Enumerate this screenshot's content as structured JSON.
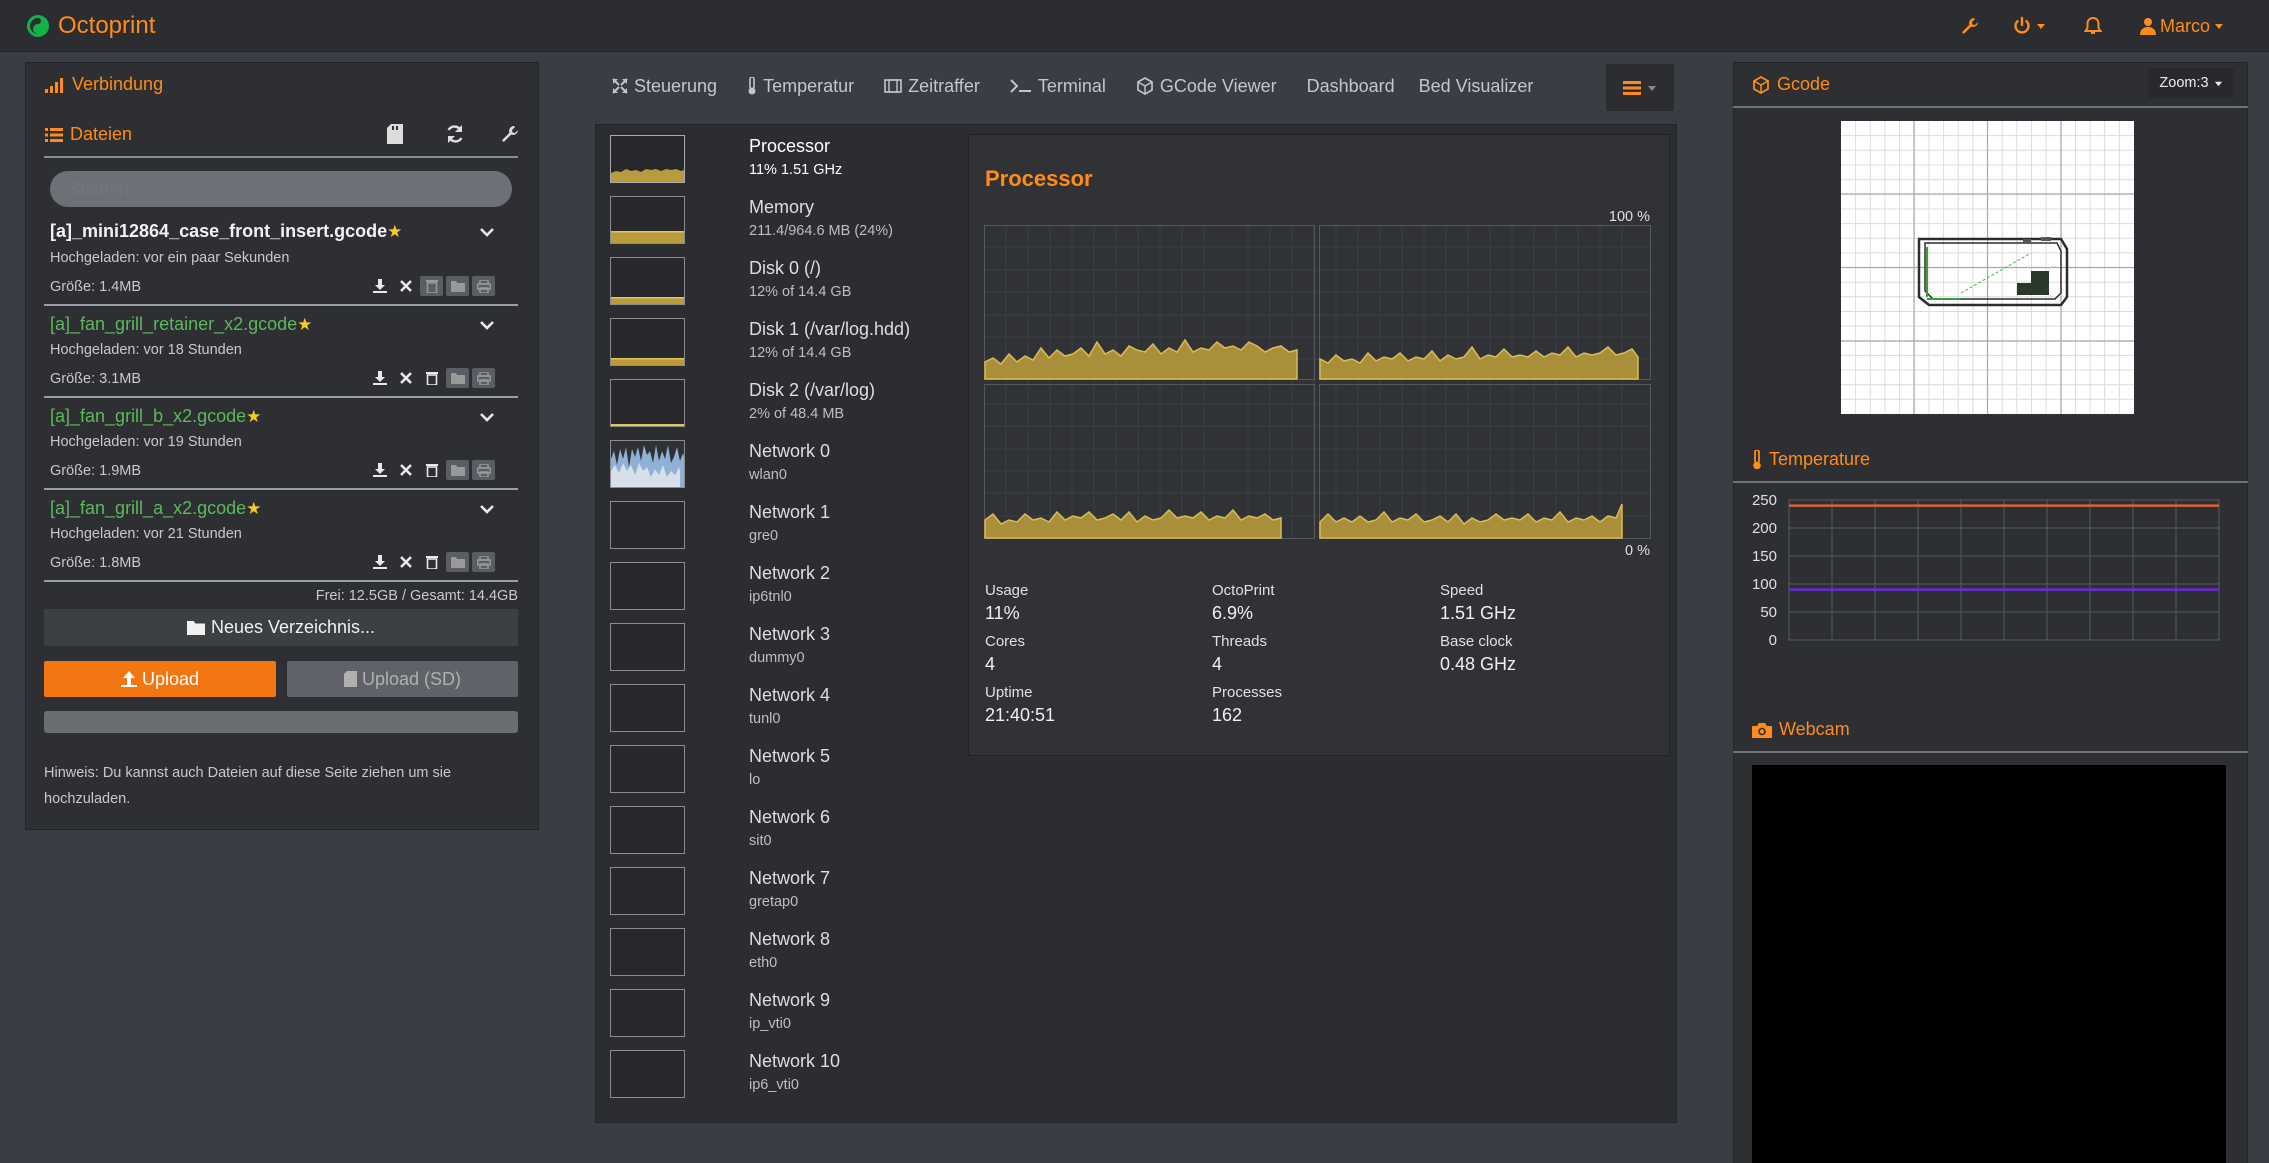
{
  "navbar": {
    "brand": "Octoprint",
    "user": "Marco"
  },
  "left": {
    "connection_title": "Verbindung",
    "files_title": "Dateien",
    "search_placeholder": "Suchen...",
    "files": [
      {
        "name": "[a]_mini12864_case_front_insert.gcode",
        "uploaded": "Hochgeladen: vor ein paar Sekunden",
        "size": "Größe: 1.4MB"
      },
      {
        "name": "[a]_fan_grill_retainer_x2.gcode",
        "uploaded": "Hochgeladen: vor 18 Stunden",
        "size": "Größe: 3.1MB"
      },
      {
        "name": "[a]_fan_grill_b_x2.gcode",
        "uploaded": "Hochgeladen: vor 19 Stunden",
        "size": "Größe: 1.9MB"
      },
      {
        "name": "[a]_fan_grill_a_x2.gcode",
        "uploaded": "Hochgeladen: vor 21 Stunden",
        "size": "Größe: 1.8MB"
      }
    ],
    "free": "Frei: 12.5GB / Gesamt: 14.4GB",
    "new_folder": "Neues Verzeichnis...",
    "upload": "Upload",
    "upload_sd": "Upload (SD)",
    "hint_line1": "Hinweis: Du kannst auch Dateien auf diese Seite ziehen um sie",
    "hint_line2": "hochzuladen."
  },
  "tabs": [
    "Steuerung",
    "Temperatur",
    "Zeitraffer",
    "Terminal",
    "GCode Viewer",
    "Dashboard",
    "Bed Visualizer"
  ],
  "resources": [
    {
      "name": "Processor",
      "sub": "11% 1.51 GHz"
    },
    {
      "name": "Memory",
      "sub": "211.4/964.6 MB (24%)"
    },
    {
      "name": "Disk 0 (/)",
      "sub": "12% of 14.4 GB"
    },
    {
      "name": "Disk 1 (/var/log.hdd)",
      "sub": "12% of 14.4 GB"
    },
    {
      "name": "Disk 2 (/var/log)",
      "sub": "2% of 48.4 MB"
    },
    {
      "name": "Network 0",
      "sub": "wlan0"
    },
    {
      "name": "Network 1",
      "sub": "gre0"
    },
    {
      "name": "Network 2",
      "sub": "ip6tnl0"
    },
    {
      "name": "Network 3",
      "sub": "dummy0"
    },
    {
      "name": "Network 4",
      "sub": "tunl0"
    },
    {
      "name": "Network 5",
      "sub": "lo"
    },
    {
      "name": "Network 6",
      "sub": "sit0"
    },
    {
      "name": "Network 7",
      "sub": "gretap0"
    },
    {
      "name": "Network 8",
      "sub": "eth0"
    },
    {
      "name": "Network 9",
      "sub": "ip_vti0"
    },
    {
      "name": "Network 10",
      "sub": "ip6_vti0"
    }
  ],
  "processor": {
    "title": "Processor",
    "max_label": "100 %",
    "min_label": "0 %",
    "stats": [
      {
        "k": "Usage",
        "v": "11%"
      },
      {
        "k": "OctoPrint",
        "v": "6.9%"
      },
      {
        "k": "Speed",
        "v": "1.51 GHz"
      },
      {
        "k": "Cores",
        "v": "4"
      },
      {
        "k": "Threads",
        "v": "4"
      },
      {
        "k": "Base clock",
        "v": "0.48 GHz"
      },
      {
        "k": "Uptime",
        "v": "21:40:51"
      },
      {
        "k": "Processes",
        "v": "162"
      }
    ]
  },
  "right": {
    "gcode_title": "Gcode",
    "zoom": "Zoom:3",
    "temp_title": "Temperature",
    "webcam_title": "Webcam"
  },
  "chart_data": {
    "type": "line",
    "title": "",
    "ylim": [
      0,
      250
    ],
    "yticks": [
      0,
      50,
      100,
      150,
      200,
      250
    ],
    "series": [
      {
        "values": [
          240,
          240,
          240,
          240,
          240,
          240,
          240,
          240,
          240,
          240
        ]
      },
      {
        "values": [
          90,
          90,
          90,
          90,
          90,
          90,
          90,
          90,
          90,
          90
        ]
      }
    ],
    "colors": [
      "#e0603a",
      "#6a2ad8"
    ],
    "grid": true
  }
}
